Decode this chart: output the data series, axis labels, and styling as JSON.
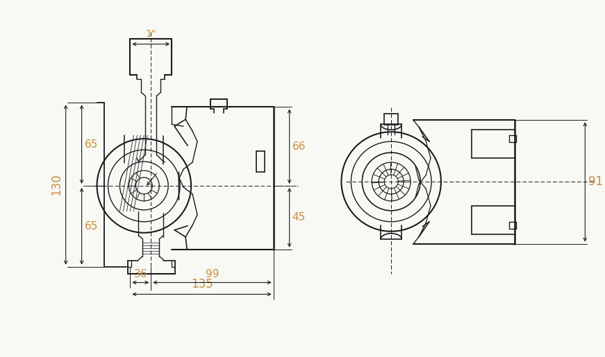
{
  "bg_color": "#f8f8f5",
  "line_color": "#1a1a1a",
  "dim_color": "#c8903a",
  "dim_line_color": "#1a1a1a",
  "fig_width": 8.71,
  "fig_height": 5.15,
  "dpi": 100,
  "dim_labels": {
    "one_inch": "1\"",
    "d65_top": "65",
    "d130": "130",
    "d65_bot": "65",
    "d66": "66",
    "d45": "45",
    "d36": "36",
    "d99": "99",
    "d135": "135",
    "d91": "91"
  }
}
